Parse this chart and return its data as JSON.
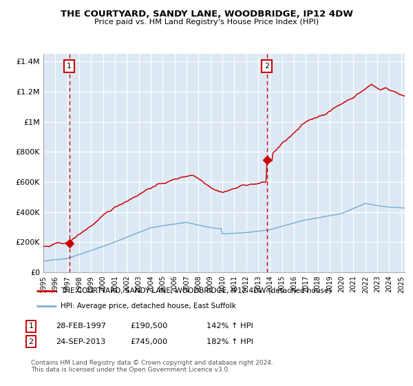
{
  "title": "THE COURTYARD, SANDY LANE, WOODBRIDGE, IP12 4DW",
  "subtitle": "Price paid vs. HM Land Registry's House Price Index (HPI)",
  "legend_line1": "THE COURTYARD, SANDY LANE, WOODBRIDGE, IP12 4DW (detached house)",
  "legend_line2": "HPI: Average price, detached house, East Suffolk",
  "annotation1_date": "28-FEB-1997",
  "annotation1_price": "£190,500",
  "annotation1_hpi": "142% ↑ HPI",
  "annotation2_date": "24-SEP-2013",
  "annotation2_price": "£745,000",
  "annotation2_hpi": "182% ↑ HPI",
  "footer": "Contains HM Land Registry data © Crown copyright and database right 2024.\nThis data is licensed under the Open Government Licence v3.0.",
  "ylim": [
    0,
    1450000
  ],
  "red_line_color": "#cc0000",
  "blue_line_color": "#7aafd4",
  "bg_color": "#dce9f5",
  "grid_color": "#ffffff",
  "vline_color": "#cc0000",
  "box_color": "#cc0000",
  "year_start": 1995,
  "year_end": 2025.3,
  "sale1_year": 1997.167,
  "sale1_price": 190500,
  "sale2_year": 2013.75,
  "sale2_price": 745000
}
